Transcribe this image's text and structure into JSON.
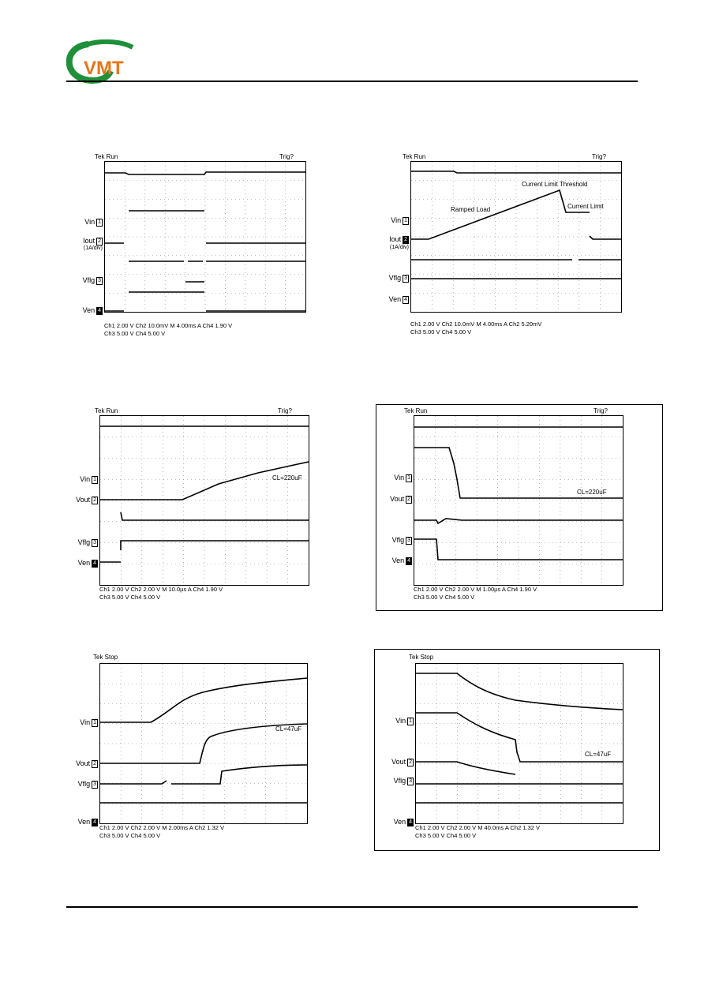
{
  "header": {
    "logo_text": "VMT"
  },
  "panels": [
    {
      "status": "Tek Run",
      "trig": "Trig?",
      "channels": [
        "Vin",
        "Iout",
        "Vflg",
        "Ven"
      ],
      "channel_marks": [
        "1",
        "2",
        "3",
        "4"
      ],
      "sublabel": "(1A/div)",
      "readout": [
        "Ch1  2.00 V  Ch2  10.0mV  M 4.00ms  A  Ch4  1.90 V",
        "Ch3  5.00 V  Ch4  5.00 V"
      ],
      "annotations": []
    },
    {
      "status": "Tek Run",
      "trig": "Trig?",
      "channels": [
        "Vin",
        "Iout",
        "Vflg",
        "Ven"
      ],
      "channel_marks": [
        "1",
        "2",
        "3",
        "4"
      ],
      "sublabel": "(1A/div)",
      "readout": [
        "Ch1  2.00 V  Ch2  10.0mV  M 4.00ms  A  Ch2  5.20mV",
        "Ch3  5.00 V  Ch4  5.00 V"
      ],
      "annotations": [
        "Current Limit Threshold",
        "Ramped Load",
        "Current Limit"
      ]
    },
    {
      "status": "Tek Run",
      "trig": "Trig?",
      "channels": [
        "Vin",
        "Vout",
        "Vflg",
        "Ven"
      ],
      "channel_marks": [
        "1",
        "2",
        "3",
        "4"
      ],
      "sublabel": "",
      "readout": [
        "Ch1  2.00 V  Ch2  2.00 V  M 10.0µs  A  Ch4  1.90 V",
        "Ch3  5.00 V  Ch4  5.00 V"
      ],
      "annotations": [
        "CL=220uF"
      ]
    },
    {
      "status": "Tek Run",
      "trig": "Trig?",
      "channels": [
        "Vin",
        "Vout",
        "Vflg",
        "Ven"
      ],
      "channel_marks": [
        "1",
        "2",
        "3",
        "4"
      ],
      "sublabel": "",
      "readout": [
        "Ch1  2.00 V  Ch2  2.00 V  M 1.00µs  A  Ch4  1.90 V",
        "Ch3  5.00 V  Ch4  5.00 V"
      ],
      "annotations": [
        "CL=220uF"
      ]
    },
    {
      "status": "Tek Stop",
      "trig": "",
      "channels": [
        "Vin",
        "Vout",
        "Vflg",
        "Ven"
      ],
      "channel_marks": [
        "1",
        "2",
        "3",
        "4"
      ],
      "sublabel": "",
      "readout": [
        "Ch1  2.00 V  Ch2  2.00 V  M 2.00ms  A  Ch2  1.32 V",
        "Ch3  5.00 V  Ch4  5.00 V"
      ],
      "annotations": [
        "CL=47uF"
      ]
    },
    {
      "status": "Tek Stop",
      "trig": "",
      "channels": [
        "Vin",
        "Vout",
        "Vflg",
        "Ven"
      ],
      "channel_marks": [
        "1",
        "2",
        "3",
        "4"
      ],
      "sublabel": "",
      "readout": [
        "Ch1  2.00 V  Ch2  2.00 V  M 40.0ms  A  Ch2  1.32 V",
        "Ch3  5.00 V  Ch4  5.00 V"
      ],
      "annotations": [
        "CL=47uF"
      ]
    }
  ]
}
